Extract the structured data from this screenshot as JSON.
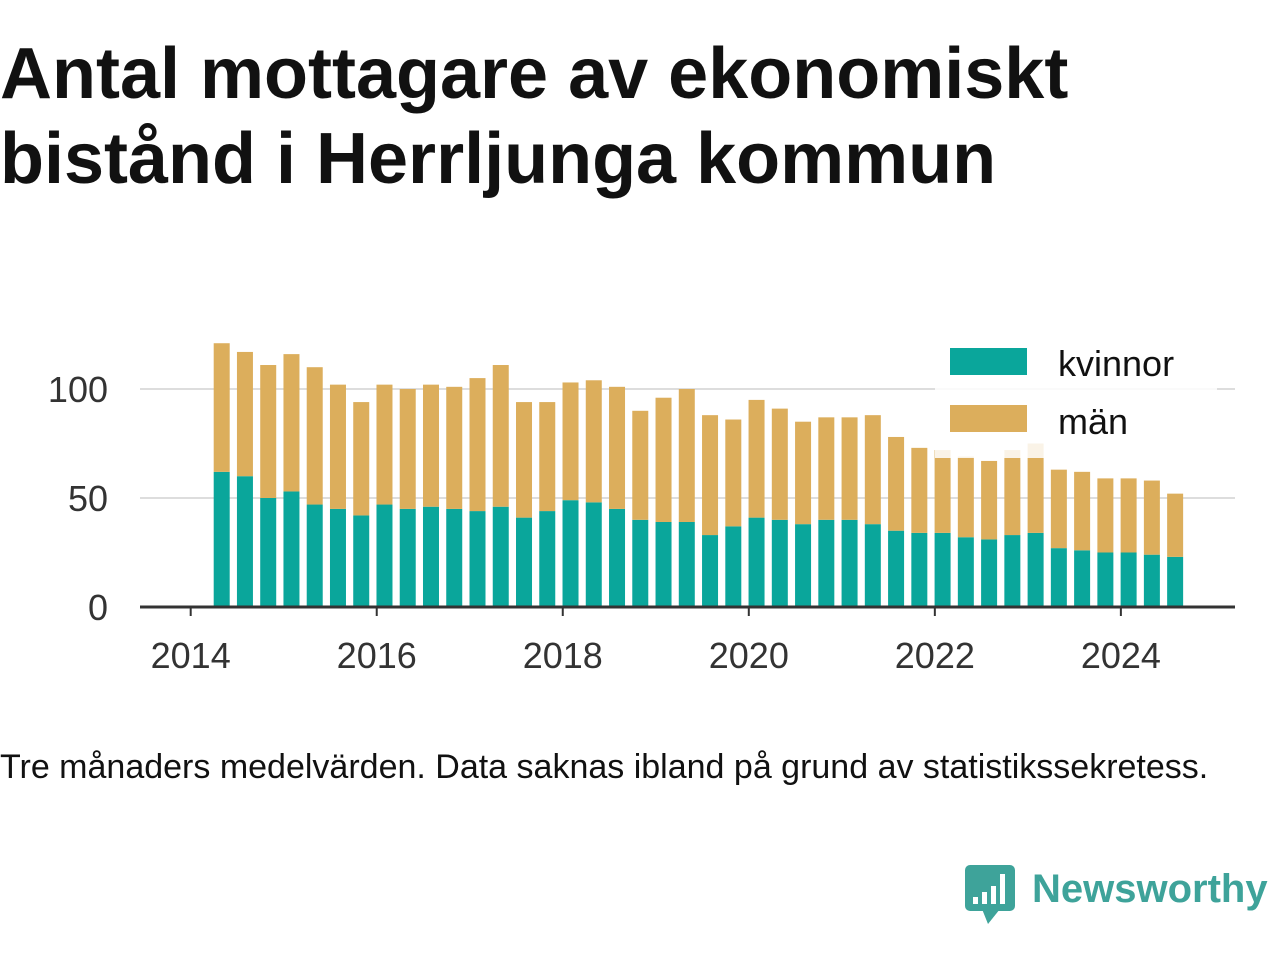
{
  "chart_data": {
    "type": "bar",
    "stacked": true,
    "title": "Antal mottagare av ekonomiskt bistånd i Herrljunga kommun",
    "note": "Tre månaders medelvärden. Data saknas ibland på grund av statistikssekretess.",
    "x": [
      "2014-05",
      "2014-08",
      "2014-11",
      "2015-02",
      "2015-05",
      "2015-08",
      "2015-11",
      "2016-02",
      "2016-05",
      "2016-08",
      "2016-11",
      "2017-02",
      "2017-05",
      "2017-08",
      "2017-11",
      "2018-02",
      "2018-05",
      "2018-08",
      "2018-11",
      "2019-02",
      "2019-05",
      "2019-08",
      "2019-11",
      "2020-02",
      "2020-05",
      "2020-08",
      "2020-11",
      "2021-02",
      "2021-05",
      "2021-08",
      "2021-11",
      "2022-02",
      "2022-05",
      "2022-08",
      "2022-11",
      "2023-02",
      "2023-05",
      "2023-08",
      "2023-11",
      "2024-02",
      "2024-05",
      "2024-08"
    ],
    "series": [
      {
        "name": "kvinnor",
        "color": "#0aa69b",
        "values": [
          62,
          60,
          50,
          53,
          47,
          45,
          42,
          47,
          45,
          46,
          45,
          44,
          46,
          41,
          44,
          49,
          48,
          45,
          40,
          39,
          39,
          33,
          37,
          41,
          40,
          38,
          40,
          40,
          38,
          35,
          34,
          34,
          32,
          31,
          33,
          34,
          27,
          26,
          25,
          25,
          24,
          23
        ]
      },
      {
        "name": "män",
        "color": "#dcae5c",
        "values": [
          59,
          57,
          61,
          63,
          63,
          57,
          52,
          55,
          55,
          56,
          56,
          61,
          65,
          53,
          50,
          54,
          56,
          56,
          50,
          57,
          61,
          55,
          49,
          54,
          51,
          47,
          47,
          47,
          50,
          43,
          39,
          38,
          37,
          36,
          39,
          41,
          36,
          36,
          34,
          34,
          34,
          29
        ]
      }
    ],
    "xticks": [
      "2014",
      "2016",
      "2018",
      "2020",
      "2022",
      "2024"
    ],
    "yticks": [
      0,
      50,
      100
    ],
    "xlim": [
      "2013-06-15",
      "2025-03-23"
    ],
    "ylim": [
      0,
      125
    ],
    "grid": true,
    "legend": "top-right"
  },
  "colors": {
    "text": "#111111",
    "tick_text": "#333333",
    "axis": "#333333",
    "grid": "#dddddd"
  },
  "brand": {
    "name": "Newsworthy",
    "icon": "newsworthy-logo-icon",
    "color": "#3ea39a"
  }
}
